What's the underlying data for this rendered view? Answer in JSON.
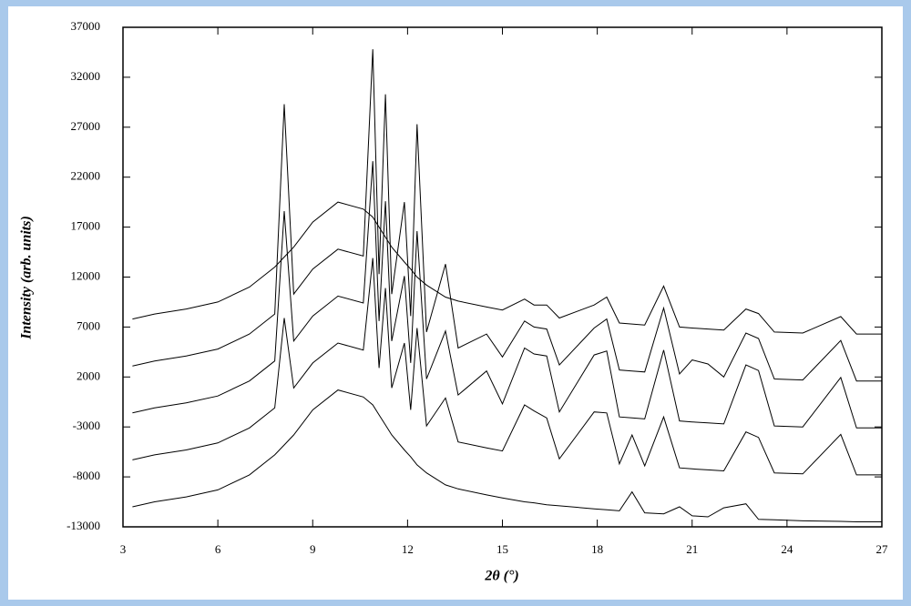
{
  "chart_data": {
    "type": "line",
    "xlabel": "2θ (°)",
    "ylabel": "Intensity (arb. units)",
    "x": [
      3.3,
      4,
      5,
      6,
      7,
      7.8,
      8.1,
      8.4,
      9,
      9.8,
      10.6,
      10.9,
      11.1,
      11.3,
      11.5,
      11.9,
      12.1,
      12.3,
      12.6,
      13.2,
      13.6,
      14.5,
      15,
      15.7,
      16,
      16.4,
      16.8,
      17.9,
      18.3,
      18.7,
      19.1,
      19.5,
      20.1,
      20.6,
      21,
      21.5,
      22,
      22.7,
      23.1,
      23.6,
      24.5,
      25.7,
      26.2,
      27
    ],
    "series": [
      {
        "color": "#000000",
        "values": [
          7800,
          8300,
          8800,
          9500,
          11000,
          13000,
          14000,
          15000,
          17500,
          19500,
          18800,
          18000,
          17000,
          16000,
          15000,
          13500,
          12800,
          12000,
          11200,
          10000,
          9600,
          9000,
          8700,
          9800,
          9200,
          9200,
          7900,
          9200,
          10000,
          7400,
          7300,
          7200,
          11100,
          7000,
          6900,
          6800,
          6700,
          8800,
          8350,
          6500,
          6400,
          8050,
          6300,
          6300
        ]
      },
      {
        "color": "#000000",
        "values": [
          3100,
          3600,
          4100,
          4800,
          6300,
          8300,
          29300,
          10300,
          12800,
          14800,
          14100,
          34800,
          12300,
          30300,
          10300,
          19500,
          8100,
          27300,
          6500,
          13300,
          4900,
          6300,
          4000,
          7600,
          7000,
          6800,
          3200,
          6900,
          7800,
          2700,
          2600,
          2500,
          8900,
          2300,
          3700,
          3300,
          2000,
          6400,
          5850,
          1800,
          1700,
          5650,
          1600,
          1600
        ]
      },
      {
        "color": "#000000",
        "values": [
          -1600,
          -1100,
          -600,
          100,
          1600,
          3600,
          18600,
          5600,
          8100,
          10100,
          9400,
          23600,
          7600,
          19600,
          5600,
          12100,
          3400,
          16600,
          1800,
          6600,
          200,
          2600,
          -700,
          4900,
          4300,
          4100,
          -1500,
          4200,
          4600,
          -2000,
          -2100,
          -2200,
          4700,
          -2400,
          -2500,
          -2600,
          -2700,
          3200,
          2650,
          -2900,
          -3000,
          1950,
          -3100,
          -3100
        ]
      },
      {
        "color": "#000000",
        "values": [
          -6300,
          -5800,
          -5300,
          -4600,
          -3100,
          -1100,
          7900,
          900,
          3400,
          5400,
          4700,
          13900,
          2900,
          10900,
          900,
          5400,
          -1300,
          6900,
          -2900,
          -100,
          -4500,
          -5100,
          -5400,
          -800,
          -1400,
          -2100,
          -6200,
          -1500,
          -1600,
          -6700,
          -3800,
          -6900,
          -2000,
          -7100,
          -7200,
          -7300,
          -7400,
          -3500,
          -4050,
          -7600,
          -7700,
          -3750,
          -7800,
          -7800
        ]
      },
      {
        "color": "#000000",
        "values": [
          -11000,
          -10500,
          -10000,
          -9300,
          -7800,
          -5800,
          -4800,
          -3800,
          -1300,
          700,
          0,
          -800,
          -1800,
          -2800,
          -3800,
          -5300,
          -6000,
          -6800,
          -7600,
          -8800,
          -9200,
          -9800,
          -10100,
          -10500,
          -10600,
          -10800,
          -10900,
          -11200,
          -11300,
          -11400,
          -9500,
          -11600,
          -11700,
          -11000,
          -11900,
          -12000,
          -11100,
          -10700,
          -12250,
          -12300,
          -12400,
          -12450,
          -12500,
          -12500
        ]
      }
    ],
    "xlim": [
      3,
      27
    ],
    "xticks": [
      3,
      6,
      9,
      12,
      15,
      18,
      21,
      24,
      27
    ],
    "ylim": [
      -13000,
      37000
    ],
    "yticks": [
      -13000,
      -8000,
      -3000,
      2000,
      7000,
      12000,
      17000,
      22000,
      27000,
      32000,
      37000
    ],
    "grid": false
  }
}
